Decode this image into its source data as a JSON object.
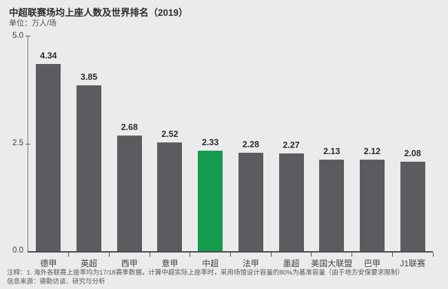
{
  "header": {
    "title": "中超联赛场均上座人数及世界排名（2019）",
    "subtitle": "单位：万人/场"
  },
  "chart_data": {
    "type": "bar",
    "title": "中超联赛场均上座人数及世界排名（2019）",
    "unit": "万人/场",
    "categories": [
      "德甲",
      "英超",
      "西甲",
      "意甲",
      "中超",
      "法甲",
      "墨超",
      "美国大联盟",
      "巴甲",
      "J1联赛"
    ],
    "values": [
      4.34,
      3.85,
      2.68,
      2.52,
      2.33,
      2.28,
      2.27,
      2.13,
      2.12,
      2.08
    ],
    "xlabel": "",
    "ylabel": "万人/场",
    "ylim": [
      0,
      5
    ],
    "y_ticks": [
      "5.0",
      "2.5",
      "0.0"
    ],
    "grid": false,
    "legend": "none",
    "highlight_category": "中超",
    "colors": {
      "bar": "#5a5c60",
      "highlight": "#149b4d",
      "background": "#ebebee",
      "axis": "#4b4c4f"
    }
  },
  "footnotes": {
    "note1": "注释：1. 海外各联赛上座率均为17/18赛季数据，计算中超实际上座率时，采用场馆设计容量的80%为基准容量（由于地方安保要求限制）",
    "note2": "信息来源：德勤访谈、研究与分析"
  }
}
